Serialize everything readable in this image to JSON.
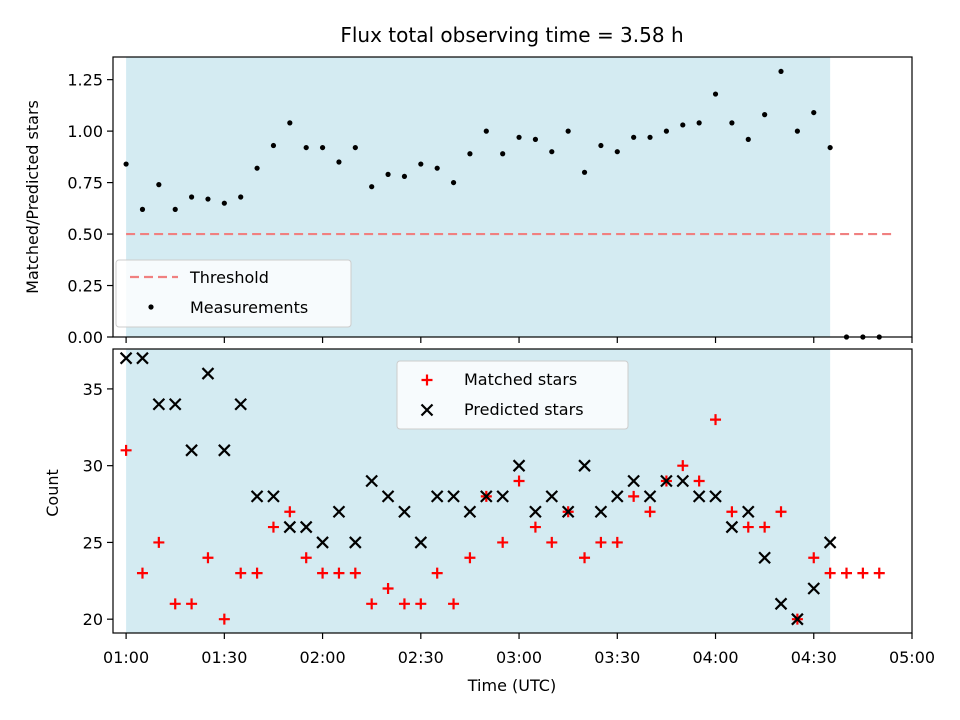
{
  "colors": {
    "span": "#add8e6",
    "threshold": "#f08080",
    "measurement": "#000000",
    "matched": "#ff0000",
    "predicted": "#000000"
  },
  "chart_data": [
    {
      "type": "scatter",
      "title": "Flux total observing time = 3.58 h",
      "ylabel": "Matched/Predicted stars",
      "xlim": [
        "00:56",
        "05:00"
      ],
      "ylim": [
        0,
        1.36
      ],
      "yticks": [
        "0.00",
        "0.25",
        "0.50",
        "0.75",
        "1.00",
        "1.25"
      ],
      "grid": false,
      "legend_position": "lower-left",
      "observing_span": [
        "01:00",
        "04:35"
      ],
      "threshold": {
        "name": "Threshold",
        "value": 0.5,
        "x_range": [
          "01:00",
          "04:55"
        ]
      },
      "series": [
        {
          "name": "Measurements",
          "x": [
            "01:00",
            "01:05",
            "01:10",
            "01:15",
            "01:20",
            "01:25",
            "01:30",
            "01:35",
            "01:40",
            "01:45",
            "01:50",
            "01:55",
            "02:00",
            "02:05",
            "02:10",
            "02:15",
            "02:20",
            "02:25",
            "02:30",
            "02:35",
            "02:40",
            "02:45",
            "02:50",
            "02:55",
            "03:00",
            "03:05",
            "03:10",
            "03:15",
            "03:20",
            "03:25",
            "03:30",
            "03:35",
            "03:40",
            "03:45",
            "03:50",
            "03:55",
            "04:00",
            "04:05",
            "04:10",
            "04:15",
            "04:20",
            "04:25",
            "04:30",
            "04:35",
            "04:40",
            "04:45",
            "04:50"
          ],
          "y": [
            0.84,
            0.62,
            0.74,
            0.62,
            0.68,
            0.67,
            0.65,
            0.68,
            0.82,
            0.93,
            1.04,
            0.92,
            0.92,
            0.85,
            0.92,
            0.73,
            0.79,
            0.78,
            0.84,
            0.82,
            0.75,
            0.89,
            1.0,
            0.89,
            0.97,
            0.96,
            0.9,
            1.0,
            0.8,
            0.93,
            0.9,
            0.97,
            0.97,
            1.0,
            1.03,
            1.04,
            1.18,
            1.04,
            0.96,
            1.08,
            1.29,
            1.0,
            1.09,
            0.92,
            0.0,
            0.0,
            0.0
          ]
        }
      ]
    },
    {
      "type": "scatter",
      "xlabel": "Time (UTC)",
      "ylabel": "Count",
      "xlim": [
        "00:56",
        "05:00"
      ],
      "ylim": [
        19.1,
        37.6
      ],
      "yticks": [
        "20",
        "25",
        "30",
        "35"
      ],
      "xticks": [
        "01:00",
        "01:30",
        "02:00",
        "02:30",
        "03:00",
        "03:30",
        "04:00",
        "04:30",
        "05:00"
      ],
      "grid": false,
      "legend_position": "upper-center",
      "observing_span": [
        "01:00",
        "04:35"
      ],
      "series": [
        {
          "name": "Matched stars",
          "x": [
            "01:00",
            "01:05",
            "01:10",
            "01:15",
            "01:20",
            "01:25",
            "01:30",
            "01:35",
            "01:40",
            "01:45",
            "01:50",
            "01:55",
            "02:00",
            "02:05",
            "02:10",
            "02:15",
            "02:20",
            "02:25",
            "02:30",
            "02:35",
            "02:40",
            "02:45",
            "02:50",
            "02:55",
            "03:00",
            "03:05",
            "03:10",
            "03:15",
            "03:20",
            "03:25",
            "03:30",
            "03:35",
            "03:40",
            "03:45",
            "03:50",
            "03:55",
            "04:00",
            "04:05",
            "04:10",
            "04:15",
            "04:20",
            "04:25",
            "04:30",
            "04:35",
            "04:40",
            "04:45",
            "04:50"
          ],
          "y": [
            31,
            23,
            25,
            21,
            21,
            24,
            20,
            23,
            23,
            26,
            27,
            24,
            23,
            23,
            23,
            21,
            22,
            21,
            21,
            23,
            21,
            24,
            28,
            25,
            29,
            26,
            25,
            27,
            24,
            25,
            25,
            28,
            27,
            29,
            30,
            29,
            33,
            27,
            26,
            26,
            27,
            20,
            24,
            23,
            23,
            23,
            23
          ]
        },
        {
          "name": "Predicted stars",
          "x": [
            "01:00",
            "01:05",
            "01:10",
            "01:15",
            "01:20",
            "01:25",
            "01:30",
            "01:35",
            "01:40",
            "01:45",
            "01:50",
            "01:55",
            "02:00",
            "02:05",
            "02:10",
            "02:15",
            "02:20",
            "02:25",
            "02:30",
            "02:35",
            "02:40",
            "02:45",
            "02:50",
            "02:55",
            "03:00",
            "03:05",
            "03:10",
            "03:15",
            "03:20",
            "03:25",
            "03:30",
            "03:35",
            "03:40",
            "03:45",
            "03:50",
            "03:55",
            "04:00",
            "04:05",
            "04:10",
            "04:15",
            "04:20",
            "04:25",
            "04:30",
            "04:35"
          ],
          "y": [
            37,
            37,
            34,
            34,
            31,
            36,
            31,
            34,
            28,
            28,
            26,
            26,
            25,
            27,
            25,
            29,
            28,
            27,
            25,
            28,
            28,
            27,
            28,
            28,
            30,
            27,
            28,
            27,
            30,
            27,
            28,
            29,
            28,
            29,
            29,
            28,
            28,
            26,
            27,
            24,
            21,
            20,
            22,
            25
          ]
        }
      ]
    }
  ]
}
